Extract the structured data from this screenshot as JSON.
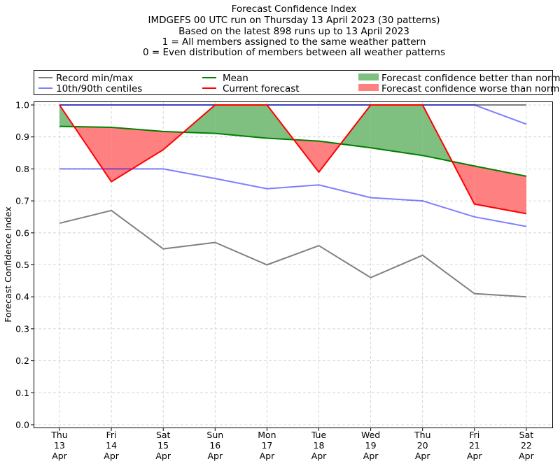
{
  "chart_data": {
    "type": "line",
    "title_lines": [
      "Forecast Confidence Index",
      "IMDGEFS 00 UTC run on Thursday 13 April 2023 (30 patterns)",
      "Based on the latest 898 runs up to 13 April 2023",
      "1 = All members assigned to the same weather pattern",
      "0 = Even distribution of members between all weather patterns"
    ],
    "ylabel": "Forecast Confidence Index",
    "xlabel": "",
    "ylim": [
      0.0,
      1.0
    ],
    "yticks": [
      "0.0",
      "0.1",
      "0.2",
      "0.3",
      "0.4",
      "0.5",
      "0.6",
      "0.7",
      "0.8",
      "0.9",
      "1.0"
    ],
    "categories": [
      [
        "Thu",
        "13",
        "Apr"
      ],
      [
        "Fri",
        "14",
        "Apr"
      ],
      [
        "Sat",
        "15",
        "Apr"
      ],
      [
        "Sun",
        "16",
        "Apr"
      ],
      [
        "Mon",
        "17",
        "Apr"
      ],
      [
        "Tue",
        "18",
        "Apr"
      ],
      [
        "Wed",
        "19",
        "Apr"
      ],
      [
        "Thu",
        "20",
        "Apr"
      ],
      [
        "Fri",
        "21",
        "Apr"
      ],
      [
        "Sat",
        "22",
        "Apr"
      ]
    ],
    "grid": true,
    "legend_position": "top",
    "legend": {
      "record": "Record min/max",
      "centiles": "10th/90th centiles",
      "mean": "Mean",
      "current": "Current forecast",
      "better": "Forecast confidence better than normal",
      "worse": "Forecast confidence worse than normal"
    },
    "colors": {
      "record": "#808080",
      "centiles": "#7f7fff",
      "mean": "#008000",
      "current": "#ff0000",
      "better": "#7fbf7f",
      "worse": "#ff8080"
    },
    "series": {
      "record_max": [
        1.0,
        1.0,
        1.0,
        1.0,
        1.0,
        1.0,
        1.0,
        1.0,
        1.0,
        1.0
      ],
      "record_min": [
        0.63,
        0.67,
        0.55,
        0.57,
        0.5,
        0.56,
        0.46,
        0.53,
        0.41,
        0.4
      ],
      "p90": [
        1.0,
        1.0,
        1.0,
        1.0,
        1.0,
        1.0,
        1.0,
        1.0,
        1.0,
        0.94
      ],
      "p10": [
        0.8,
        0.8,
        0.8,
        0.77,
        0.738,
        0.75,
        0.71,
        0.7,
        0.65,
        0.62
      ],
      "mean": [
        0.933,
        0.93,
        0.917,
        0.911,
        0.896,
        0.887,
        0.866,
        0.842,
        0.809,
        0.777
      ],
      "current": [
        1.0,
        0.76,
        0.86,
        1.0,
        1.0,
        0.79,
        1.0,
        1.0,
        0.69,
        0.66
      ]
    }
  }
}
